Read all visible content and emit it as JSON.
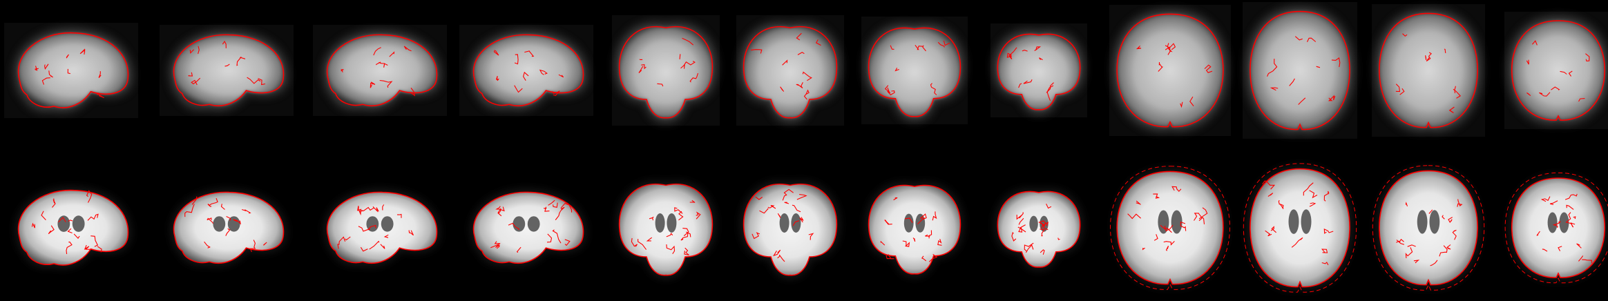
{
  "viewer": {
    "background": "#000000",
    "outline_color": "#ff0000",
    "rows": [
      {
        "name": "functional-epi-row",
        "style": "blurry-epi",
        "panels": [
          {
            "view": "sagittal"
          },
          {
            "view": "sagittal"
          },
          {
            "view": "sagittal"
          },
          {
            "view": "sagittal"
          },
          {
            "view": "coronal"
          },
          {
            "view": "coronal"
          },
          {
            "view": "coronal"
          },
          {
            "view": "coronal"
          },
          {
            "view": "axial"
          },
          {
            "view": "axial"
          },
          {
            "view": "axial"
          },
          {
            "view": "axial"
          }
        ]
      },
      {
        "name": "anatomical-template-row",
        "style": "sharp-template",
        "panels": [
          {
            "view": "sagittal"
          },
          {
            "view": "sagittal"
          },
          {
            "view": "sagittal"
          },
          {
            "view": "sagittal"
          },
          {
            "view": "coronal"
          },
          {
            "view": "coronal"
          },
          {
            "view": "coronal"
          },
          {
            "view": "coronal"
          },
          {
            "view": "axial"
          },
          {
            "view": "axial"
          },
          {
            "view": "axial"
          },
          {
            "view": "axial"
          }
        ]
      }
    ]
  }
}
